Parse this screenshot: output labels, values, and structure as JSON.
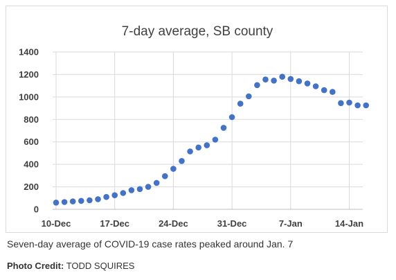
{
  "chart_data": {
    "type": "scatter",
    "title": "7-day average, SB county",
    "xlabel": "",
    "ylabel": "",
    "ylim": [
      0,
      1400
    ],
    "yticks": [
      0,
      200,
      400,
      600,
      800,
      1000,
      1200,
      1400
    ],
    "xticks": [
      "10-Dec",
      "17-Dec",
      "24-Dec",
      "31-Dec",
      "7-Jan",
      "14-Jan"
    ],
    "grid": true,
    "legend": "none",
    "marker_color": "#4472C4",
    "series": [
      {
        "x": [
          "2020-12-10",
          "2020-12-11",
          "2020-12-12",
          "2020-12-13",
          "2020-12-14",
          "2020-12-15",
          "2020-12-16",
          "2020-12-17",
          "2020-12-18",
          "2020-12-19",
          "2020-12-20",
          "2020-12-21",
          "2020-12-22",
          "2020-12-23",
          "2020-12-24",
          "2020-12-25",
          "2020-12-26",
          "2020-12-27",
          "2020-12-28",
          "2020-12-29",
          "2020-12-30",
          "2020-12-31",
          "2021-01-01",
          "2021-01-02",
          "2021-01-03",
          "2021-01-04",
          "2021-01-05",
          "2021-01-06",
          "2021-01-07",
          "2021-01-08",
          "2021-01-09",
          "2021-01-10",
          "2021-01-11",
          "2021-01-12",
          "2021-01-13",
          "2021-01-14",
          "2021-01-15",
          "2021-01-16"
        ],
        "values": [
          60,
          65,
          70,
          75,
          80,
          90,
          110,
          125,
          145,
          170,
          180,
          200,
          235,
          295,
          360,
          430,
          515,
          550,
          570,
          620,
          725,
          820,
          940,
          1005,
          1105,
          1155,
          1145,
          1180,
          1160,
          1140,
          1120,
          1095,
          1060,
          1045,
          945,
          950,
          925,
          925
        ]
      }
    ]
  },
  "caption": "Seven-day average of COVID-19 case rates peaked around Jan. 7",
  "credit": {
    "label": "Photo Credit:",
    "name": "TODD SQUIRES"
  }
}
